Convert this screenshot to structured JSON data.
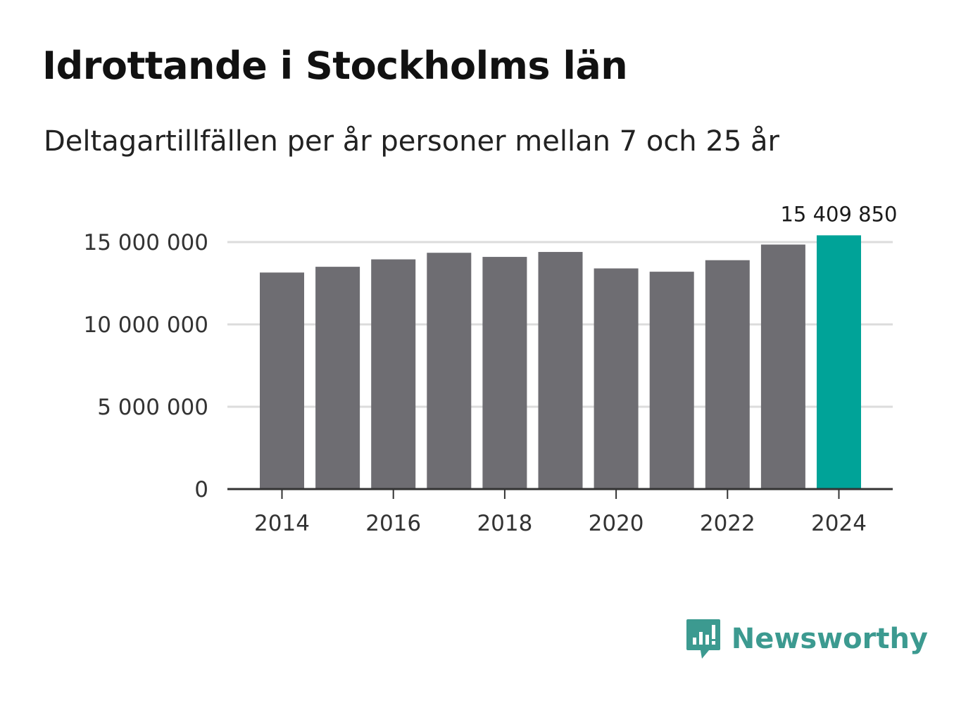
{
  "title": "Idrottande i Stockholms län",
  "subtitle": "Deltagartillfällen per år personer mellan 7 och 25 år",
  "brand": {
    "name": "Newsworthy",
    "icon": "newsworthy-logo-icon",
    "color": "#3c9a90"
  },
  "colors": {
    "bar": "#6e6d72",
    "highlight": "#00a398",
    "grid": "#dcdcdc",
    "axis": "#333333"
  },
  "chart_data": {
    "type": "bar",
    "title": "Idrottande i Stockholms län",
    "subtitle": "Deltagartillfällen per år personer mellan 7 och 25 år",
    "categories": [
      "2014",
      "2015",
      "2016",
      "2017",
      "2018",
      "2019",
      "2020",
      "2021",
      "2022",
      "2023",
      "2024"
    ],
    "values": [
      13150000,
      13500000,
      13950000,
      14350000,
      14100000,
      14400000,
      13400000,
      13200000,
      13900000,
      14850000,
      15409850
    ],
    "highlight_index": 10,
    "annotation": "15 409 850",
    "xticks": [
      "2014",
      "2016",
      "2018",
      "2020",
      "2022",
      "2024"
    ],
    "yticks": [
      {
        "value": 0,
        "label": "0"
      },
      {
        "value": 5000000,
        "label": "5 000 000"
      },
      {
        "value": 10000000,
        "label": "10 000 000"
      },
      {
        "value": 15000000,
        "label": "15 000 000"
      }
    ],
    "ylim": [
      0,
      15000000
    ],
    "xlabel": "",
    "ylabel": "",
    "grid": true,
    "legend": "none"
  }
}
